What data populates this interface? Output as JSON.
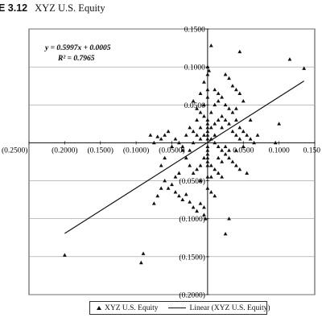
{
  "figure": {
    "number": "E 3.12",
    "title": "XYZ U.S. Equity"
  },
  "chart_data": {
    "type": "scatter",
    "xlim": [
      -0.25,
      0.15
    ],
    "ylim": [
      -0.2,
      0.15
    ],
    "x_ticks": [
      -0.25,
      -0.2,
      -0.15,
      -0.1,
      -0.05,
      0.05,
      0.1,
      0.15
    ],
    "x_tick_labels": [
      "(0.2500)",
      "(0.2000)",
      "(0.1500)",
      "(0.1000)",
      "(0.0500)",
      "0.0500",
      "0.1000",
      "0.150"
    ],
    "y_ticks": [
      0.15,
      0.1,
      0.05,
      -0.05,
      -0.1,
      -0.15,
      -0.2
    ],
    "y_tick_labels": [
      "0.1500",
      "0.1000",
      "0.0500",
      "(0.0500)",
      "(0.1000)",
      "(0.1500)",
      "(0.2000)"
    ],
    "grid": "horizontal",
    "equation": "y = 0.5997x + 0.0005",
    "r_squared": "R² = 0.7965",
    "trendline": {
      "slope": 0.5997,
      "intercept": 0.0005,
      "x_range": [
        -0.2,
        0.135
      ]
    },
    "legend": {
      "position": "bottom",
      "entries": [
        "XYZ U.S. Equity",
        "Linear (XYZ U.S. Equity)"
      ]
    },
    "series": [
      {
        "name": "XYZ U.S. Equity",
        "points": [
          [
            -0.2,
            -0.148
          ],
          [
            -0.09,
            -0.146
          ],
          [
            -0.093,
            -0.158
          ],
          [
            0.005,
            0.128
          ],
          [
            0.045,
            0.12
          ],
          [
            0.115,
            0.11
          ],
          [
            0.135,
            0.098
          ],
          [
            0.0,
            0.1
          ],
          [
            -0.055,
            0.015
          ],
          [
            -0.06,
            0.01
          ],
          [
            -0.065,
            0.005
          ],
          [
            -0.07,
            0.008
          ],
          [
            -0.08,
            0.01
          ],
          [
            -0.075,
            0.0
          ],
          [
            -0.045,
            0.005
          ],
          [
            -0.04,
            0.0
          ],
          [
            -0.05,
            -0.005
          ],
          [
            -0.035,
            -0.005
          ],
          [
            -0.03,
            0.01
          ],
          [
            -0.025,
            0.02
          ],
          [
            -0.02,
            0.015
          ],
          [
            -0.015,
            0.03
          ],
          [
            -0.01,
            0.04
          ],
          [
            -0.005,
            0.05
          ],
          [
            0.0,
            0.06
          ],
          [
            0.0,
            0.07
          ],
          [
            -0.005,
            0.08
          ],
          [
            0.0,
            0.09
          ],
          [
            0.002,
            0.095
          ],
          [
            0.01,
            0.05
          ],
          [
            0.015,
            0.055
          ],
          [
            0.02,
            0.06
          ],
          [
            0.025,
            0.05
          ],
          [
            0.03,
            0.045
          ],
          [
            0.035,
            0.04
          ],
          [
            0.04,
            0.03
          ],
          [
            0.045,
            0.02
          ],
          [
            0.05,
            0.015
          ],
          [
            0.055,
            0.01
          ],
          [
            0.06,
            0.005
          ],
          [
            0.065,
            0.0
          ],
          [
            0.07,
            0.01
          ],
          [
            0.05,
            0.055
          ],
          [
            0.03,
            0.085
          ],
          [
            0.025,
            0.09
          ],
          [
            0.035,
            0.075
          ],
          [
            0.04,
            0.07
          ],
          [
            0.045,
            0.065
          ],
          [
            0.02,
            0.035
          ],
          [
            0.015,
            0.03
          ],
          [
            0.01,
            0.025
          ],
          [
            0.005,
            0.02
          ],
          [
            0.0,
            0.015
          ],
          [
            -0.005,
            0.01
          ],
          [
            -0.01,
            0.005
          ],
          [
            0.005,
            0.005
          ],
          [
            0.01,
            0.0
          ],
          [
            0.015,
            -0.005
          ],
          [
            0.02,
            -0.01
          ],
          [
            0.025,
            -0.015
          ],
          [
            0.03,
            -0.02
          ],
          [
            0.035,
            -0.025
          ],
          [
            0.04,
            -0.03
          ],
          [
            0.045,
            -0.035
          ],
          [
            0.055,
            -0.04
          ],
          [
            0.02,
            -0.045
          ],
          [
            0.005,
            -0.045
          ],
          [
            0.0,
            -0.045
          ],
          [
            -0.01,
            -0.05
          ],
          [
            -0.02,
            -0.04
          ],
          [
            -0.025,
            -0.03
          ],
          [
            -0.03,
            -0.02
          ],
          [
            -0.035,
            -0.01
          ],
          [
            -0.04,
            -0.04
          ],
          [
            -0.045,
            -0.045
          ],
          [
            -0.05,
            -0.055
          ],
          [
            -0.055,
            -0.06
          ],
          [
            -0.06,
            -0.05
          ],
          [
            -0.065,
            -0.06
          ],
          [
            -0.07,
            -0.07
          ],
          [
            -0.075,
            -0.08
          ],
          [
            -0.045,
            -0.065
          ],
          [
            -0.04,
            -0.07
          ],
          [
            -0.035,
            -0.075
          ],
          [
            -0.03,
            -0.068
          ],
          [
            -0.025,
            -0.078
          ],
          [
            -0.02,
            -0.085
          ],
          [
            -0.015,
            -0.09
          ],
          [
            -0.01,
            -0.08
          ],
          [
            -0.005,
            -0.085
          ],
          [
            -0.003,
            -0.1
          ],
          [
            0.0,
            -0.06
          ],
          [
            0.005,
            -0.065
          ],
          [
            0.01,
            -0.07
          ],
          [
            0.015,
            -0.02
          ],
          [
            0.02,
            -0.025
          ],
          [
            0.025,
            -0.005
          ],
          [
            0.01,
            0.01
          ],
          [
            0.005,
            0.04
          ],
          [
            -0.015,
            0.045
          ],
          [
            -0.02,
            0.055
          ],
          [
            -0.005,
            0.035
          ],
          [
            0.0,
            0.03
          ],
          [
            0.0,
            0.025
          ],
          [
            0.0,
            0.02
          ],
          [
            0.0,
            0.01
          ],
          [
            0.0,
            0.005
          ],
          [
            0.0,
            -0.005
          ],
          [
            0.0,
            -0.01
          ],
          [
            0.0,
            -0.015
          ],
          [
            0.0,
            -0.02
          ],
          [
            0.0,
            -0.025
          ],
          [
            0.0,
            -0.03
          ],
          [
            -0.005,
            -0.02
          ],
          [
            -0.01,
            -0.03
          ],
          [
            -0.015,
            -0.035
          ],
          [
            0.005,
            -0.03
          ],
          [
            0.01,
            -0.035
          ],
          [
            0.015,
            -0.04
          ],
          [
            0.025,
            -0.12
          ],
          [
            0.03,
            -0.1
          ],
          [
            -0.005,
            -0.095
          ],
          [
            0.04,
            0.045
          ],
          [
            0.03,
            0.025
          ],
          [
            0.035,
            0.015
          ],
          [
            0.04,
            0.01
          ],
          [
            0.045,
            0.005
          ],
          [
            0.05,
            -0.005
          ],
          [
            0.04,
            -0.01
          ],
          [
            0.03,
            -0.01
          ],
          [
            0.1,
            0.025
          ],
          [
            0.095,
            0.0
          ],
          [
            -0.06,
            -0.02
          ],
          [
            -0.065,
            -0.03
          ],
          [
            -0.01,
            0.02
          ],
          [
            -0.015,
            0.01
          ],
          [
            -0.02,
            0.0
          ],
          [
            -0.025,
            -0.01
          ],
          [
            0.02,
            0.02
          ],
          [
            0.025,
            0.03
          ],
          [
            0.015,
            0.065
          ],
          [
            0.01,
            0.07
          ],
          [
            -0.01,
            0.065
          ],
          [
            0.06,
            0.03
          ]
        ]
      }
    ]
  }
}
